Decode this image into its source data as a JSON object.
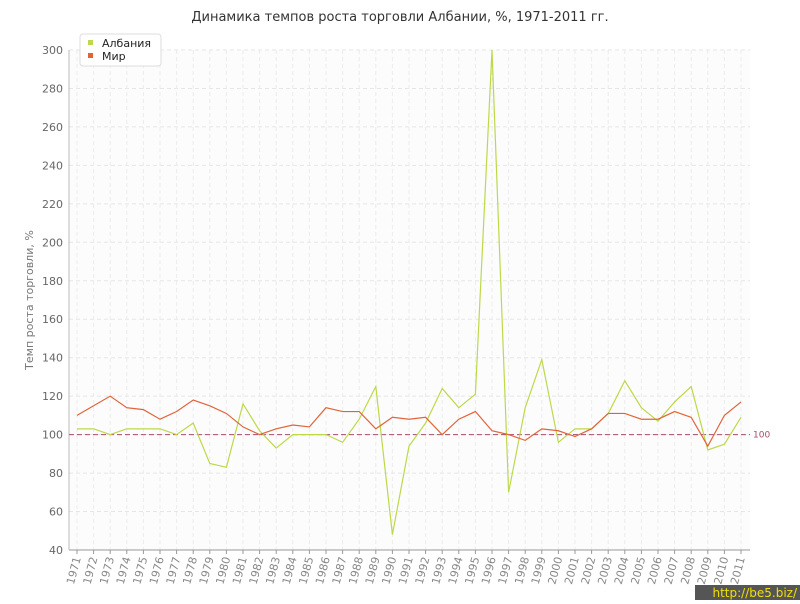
{
  "chart_data": {
    "type": "line",
    "title": "Динамика темпов роста торговли Албании, %, 1971-2011 гг.",
    "y_label": "Темп роста торговли, %",
    "x": [
      1971,
      1972,
      1973,
      1974,
      1975,
      1976,
      1977,
      1978,
      1979,
      1980,
      1981,
      1982,
      1983,
      1984,
      1985,
      1986,
      1987,
      1988,
      1989,
      1990,
      1991,
      1992,
      1993,
      1994,
      1995,
      1996,
      1997,
      1998,
      1999,
      2000,
      2001,
      2002,
      2003,
      2004,
      2005,
      2006,
      2007,
      2008,
      2009,
      2010,
      2011
    ],
    "xlim": [
      1971,
      2011
    ],
    "series": [
      {
        "name": "Албания",
        "color": "#bcd94a",
        "values": [
          103,
          103,
          100,
          103,
          103,
          103,
          100,
          106,
          85,
          83,
          116,
          102,
          93,
          100,
          100,
          100,
          96,
          108,
          125,
          48,
          94,
          106,
          124,
          114,
          121,
          300,
          70,
          114,
          139,
          96,
          103,
          103,
          111,
          128,
          114,
          107,
          117,
          125,
          92,
          95,
          109
        ]
      },
      {
        "name": "Мир",
        "color": "#e0643a",
        "values": [
          110,
          115,
          120,
          114,
          113,
          108,
          112,
          118,
          115,
          111,
          104,
          100,
          103,
          105,
          104,
          114,
          112,
          112,
          103,
          109,
          108,
          109,
          100,
          108,
          112,
          102,
          100,
          97,
          103,
          102,
          99,
          103,
          111,
          111,
          108,
          108,
          112,
          109,
          94,
          110,
          117
        ]
      }
    ],
    "ylim": [
      40,
      300
    ],
    "yticks": [
      40,
      60,
      80,
      100,
      120,
      140,
      160,
      180,
      200,
      220,
      240,
      260,
      280,
      300
    ],
    "grid": true,
    "reference_line": 100,
    "reference_color": "#a0506e",
    "legend": "top-left",
    "watermark": "http://be5.biz/"
  }
}
